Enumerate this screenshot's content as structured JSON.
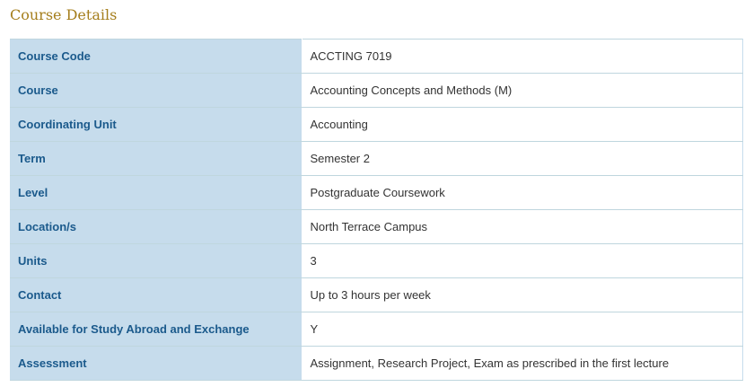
{
  "section": {
    "title": "Course Details"
  },
  "rows": [
    {
      "label": "Course Code",
      "value": "ACCTING 7019"
    },
    {
      "label": "Course",
      "value": "Accounting Concepts and Methods (M)"
    },
    {
      "label": "Coordinating Unit",
      "value": "Accounting"
    },
    {
      "label": "Term",
      "value": "Semester 2"
    },
    {
      "label": "Level",
      "value": "Postgraduate Coursework"
    },
    {
      "label": "Location/s",
      "value": "North Terrace Campus"
    },
    {
      "label": "Units",
      "value": "3"
    },
    {
      "label": "Contact",
      "value": "Up to 3 hours per week"
    },
    {
      "label": "Available for Study Abroad and Exchange",
      "value": "Y"
    },
    {
      "label": "Assessment",
      "value": "Assignment, Research Project, Exam as prescribed in the first lecture"
    }
  ],
  "colors": {
    "heading": "#a57e1c",
    "label_bg": "#c6dcec",
    "label_text": "#1b5a8c",
    "value_text": "#333333",
    "row_border": "#bfd6de"
  }
}
